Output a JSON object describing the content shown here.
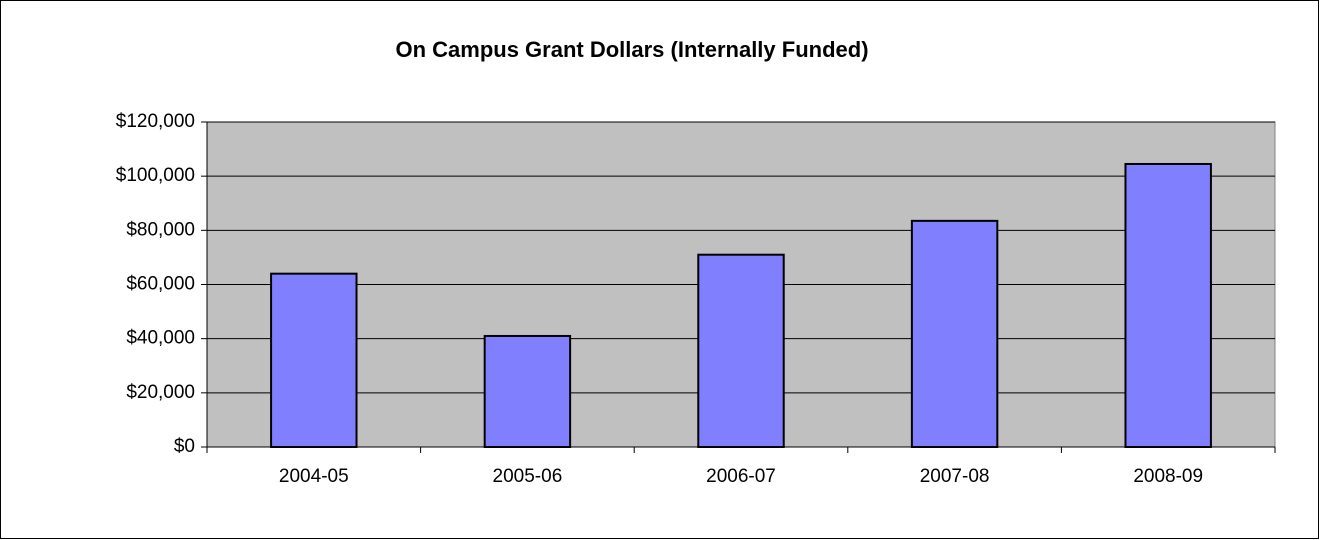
{
  "chart_data": {
    "type": "bar",
    "title": "On Campus Grant Dollars (Internally Funded)",
    "categories": [
      "2004-05",
      "2005-06",
      "2006-07",
      "2007-08",
      "2008-09"
    ],
    "values": [
      64000,
      41000,
      71000,
      83500,
      104500
    ],
    "color": "#8080ff",
    "ylim": [
      0,
      120000
    ],
    "yticks": [
      {
        "value": 0,
        "label": "$0"
      },
      {
        "value": 20000,
        "label": "$20,000"
      },
      {
        "value": 40000,
        "label": "$40,000"
      },
      {
        "value": 60000,
        "label": "$60,000"
      },
      {
        "value": 80000,
        "label": "$80,000"
      },
      {
        "value": 100000,
        "label": "$100,000"
      },
      {
        "value": 120000,
        "label": "$120,000"
      }
    ],
    "grid": true
  }
}
